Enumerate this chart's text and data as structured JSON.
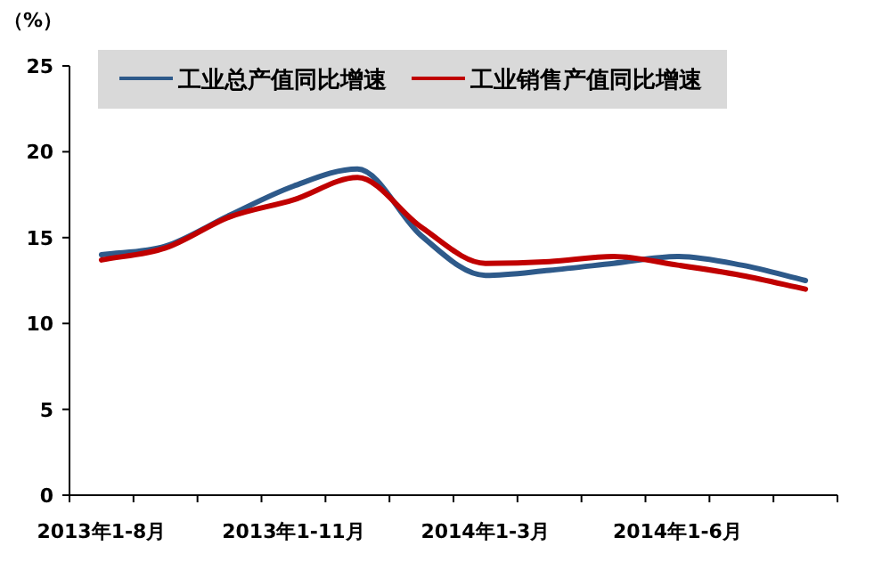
{
  "chart_data": {
    "type": "line",
    "ylabel": "（%）",
    "categories": [
      "2013年1-8月",
      null,
      null,
      "2013年1-11月",
      null,
      null,
      "2014年1-3月",
      null,
      null,
      "2014年1-6月",
      null,
      null
    ],
    "series": [
      {
        "name": "工业总产值同比增速",
        "color": "#2e5a8a",
        "values": [
          14.0,
          14.5,
          16.3,
          18.0,
          19.0,
          15.1,
          12.8,
          13.1,
          13.5,
          13.9,
          13.4,
          12.5
        ]
      },
      {
        "name": "工业销售产值同比增速",
        "color": "#c00000",
        "values": [
          13.7,
          14.4,
          16.2,
          17.2,
          18.5,
          15.6,
          13.5,
          13.6,
          13.9,
          13.4,
          12.8,
          12.0
        ]
      }
    ],
    "ylim": [
      0,
      25
    ],
    "yticks": [
      0,
      5,
      10,
      15,
      20,
      25
    ],
    "legend": "top"
  }
}
